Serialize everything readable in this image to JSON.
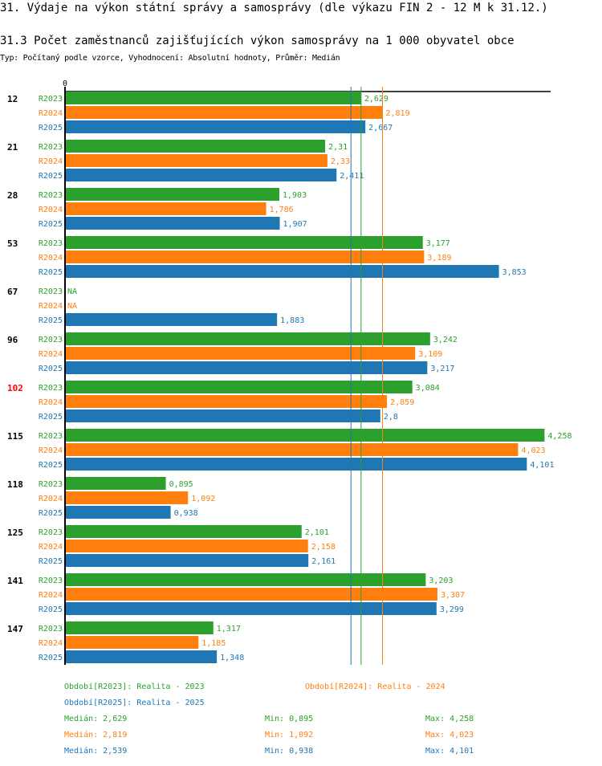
{
  "header": {
    "title": "31. Výdaje na výkon státní správy a samosprávy (dle výkazu FIN 2 - 12 M k 31.12.)",
    "subtitle": "31.3 Počet zaměstnanců zajišťujících výkon samosprávy na 1 000 obyvatel obce",
    "meta": "Typ: Počítaný podle vzorce, Vyhodnocení: Absolutní hodnoty, Průměr: Medián"
  },
  "chart_data": {
    "type": "bar",
    "orientation": "horizontal",
    "title": "31.3 Počet zaměstnanců zajišťujících výkon samosprávy na 1 000 obyvatel obce",
    "x_tick_labels": [
      "0"
    ],
    "xlim": [
      0,
      4.3
    ],
    "categories": [
      "12",
      "21",
      "28",
      "53",
      "67",
      "96",
      "102",
      "115",
      "118",
      "125",
      "141",
      "147"
    ],
    "highlight_category": "102",
    "highlight_color": "#ff0000",
    "series": [
      {
        "name": "R2023",
        "color": "#2ca02c",
        "values": [
          2.629,
          2.31,
          1.903,
          3.177,
          null,
          3.242,
          3.084,
          4.258,
          0.895,
          2.101,
          3.203,
          1.317
        ],
        "labels": [
          "2,629",
          "2,31",
          "1,903",
          "3,177",
          "NA",
          "3,242",
          "3,084",
          "4,258",
          "0,895",
          "2,101",
          "3,203",
          "1,317"
        ]
      },
      {
        "name": "R2024",
        "color": "#ff7f0e",
        "values": [
          2.819,
          2.33,
          1.786,
          3.189,
          null,
          3.109,
          2.859,
          4.023,
          1.092,
          2.158,
          3.307,
          1.185
        ],
        "labels": [
          "2,819",
          "2,33",
          "1,786",
          "3,189",
          "NA",
          "3,109",
          "2,859",
          "4,023",
          "1,092",
          "2,158",
          "3,307",
          "1,185"
        ]
      },
      {
        "name": "R2025",
        "color": "#1f77b4",
        "values": [
          2.667,
          2.411,
          1.907,
          3.853,
          1.883,
          3.217,
          2.8,
          4.101,
          0.938,
          2.161,
          3.299,
          1.348
        ],
        "labels": [
          "2,667",
          "2,411",
          "1,907",
          "3,853",
          "1,883",
          "3,217",
          "2,8",
          "4,101",
          "0,938",
          "2,161",
          "3,299",
          "1,348"
        ]
      }
    ],
    "medians": [
      {
        "series": "R2023",
        "value": 2.629,
        "color": "#2ca02c"
      },
      {
        "series": "R2024",
        "value": 2.819,
        "color": "#ff7f0e"
      },
      {
        "series": "R2025",
        "value": 2.539,
        "color": "#1f77b4"
      }
    ]
  },
  "legend": {
    "periods": [
      {
        "text": "Období[R2023]: Realita - 2023",
        "color": "#2ca02c"
      },
      {
        "text": "Období[R2024]: Realita - 2024",
        "color": "#ff7f0e"
      },
      {
        "text": "Období[R2025]: Realita - 2025",
        "color": "#1f77b4"
      }
    ],
    "stats": [
      {
        "median": "Medián: 2,629",
        "min": "Min: 0,895",
        "max": "Max: 4,258",
        "color": "#2ca02c"
      },
      {
        "median": "Medián: 2,819",
        "min": "Min: 1,092",
        "max": "Max: 4,023",
        "color": "#ff7f0e"
      },
      {
        "median": "Medián: 2,539",
        "min": "Min: 0,938",
        "max": "Max: 4,101",
        "color": "#1f77b4"
      }
    ]
  }
}
